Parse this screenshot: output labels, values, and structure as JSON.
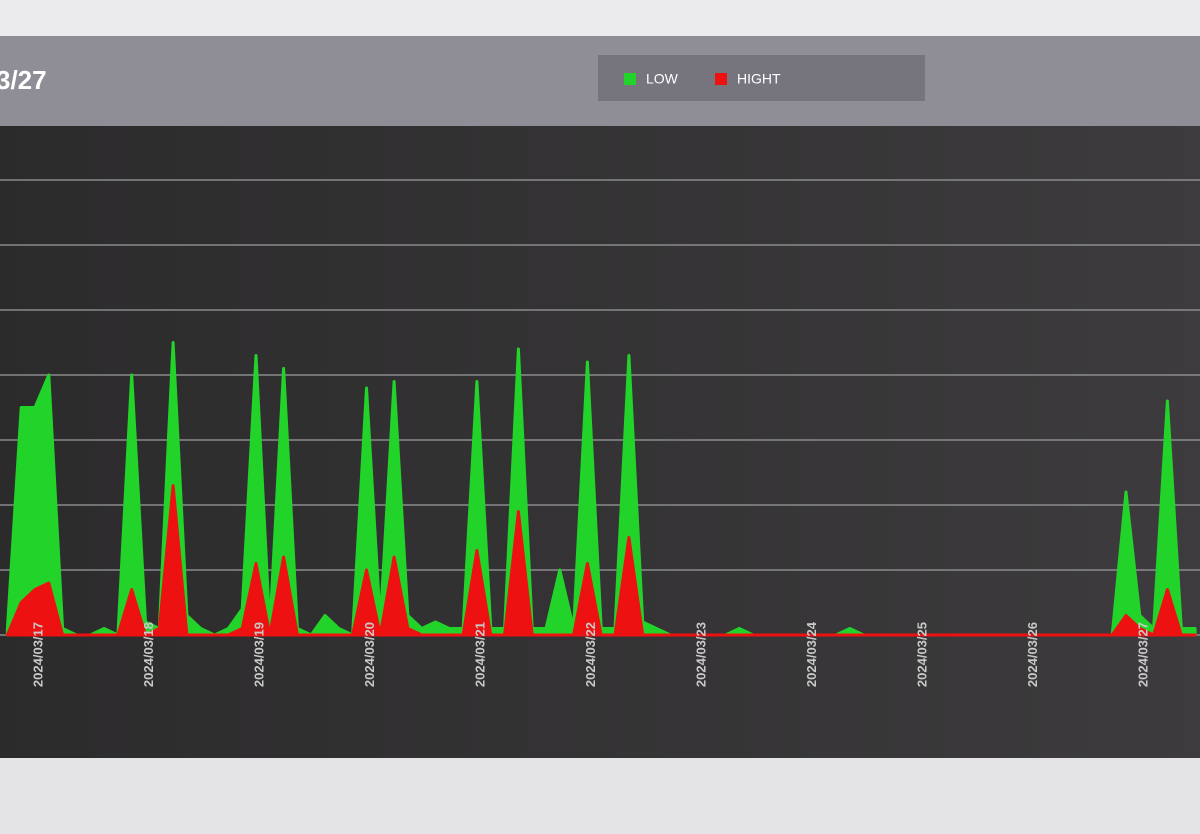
{
  "chart_data": {
    "type": "area",
    "title": "3/27",
    "categories": [
      null,
      null,
      "2024/03/17",
      null,
      null,
      null,
      null,
      null,
      null,
      null,
      "2024/03/18",
      null,
      null,
      null,
      null,
      null,
      null,
      null,
      "2024/03/19",
      null,
      null,
      null,
      null,
      null,
      null,
      null,
      "2024/03/20",
      null,
      null,
      null,
      null,
      null,
      null,
      null,
      "2024/03/21",
      null,
      null,
      null,
      null,
      null,
      null,
      null,
      "2024/03/22",
      null,
      null,
      null,
      null,
      null,
      null,
      null,
      "2024/03/23",
      null,
      null,
      null,
      null,
      null,
      null,
      null,
      "2024/03/24",
      null,
      null,
      null,
      null,
      null,
      null,
      null,
      "2024/03/25",
      null,
      null,
      null,
      null,
      null,
      null,
      null,
      "2024/03/26",
      null,
      null,
      null,
      null,
      null,
      null,
      null,
      "2024/03/27",
      null,
      null,
      null,
      null
    ],
    "series": [
      {
        "name": "LOW",
        "color": "#22d42a",
        "values": [
          0.1,
          3.5,
          3.5,
          4.0,
          0.1,
          0,
          0,
          0.1,
          0,
          4.0,
          0.2,
          0.1,
          4.5,
          0.3,
          0.1,
          0,
          0.1,
          0.4,
          4.3,
          0.1,
          4.1,
          0.1,
          0,
          0.3,
          0.1,
          0,
          3.8,
          0.2,
          3.9,
          0.3,
          0.1,
          0.2,
          0.1,
          0.1,
          3.9,
          0.1,
          0.1,
          4.4,
          0.1,
          0.1,
          1.0,
          0.1,
          4.2,
          0.1,
          0.1,
          4.3,
          0.2,
          0.1,
          0,
          0,
          0,
          0,
          0,
          0.1,
          0,
          0,
          0,
          0,
          0,
          0,
          0,
          0.1,
          0,
          0,
          0,
          0,
          0,
          0,
          0,
          0,
          0,
          0,
          0,
          0,
          0,
          0,
          0,
          0,
          0,
          0,
          0,
          2.2,
          0.3,
          0.1,
          3.6,
          0.1,
          0.1
        ]
      },
      {
        "name": "HIGHT",
        "color": "#ee1111",
        "values": [
          0,
          0.5,
          0.7,
          0.8,
          0,
          0,
          0,
          0,
          0,
          0.7,
          0,
          0.1,
          2.3,
          0,
          0,
          0,
          0,
          0.1,
          1.1,
          0,
          1.2,
          0,
          0,
          0,
          0,
          0,
          1.0,
          0,
          1.2,
          0.1,
          0,
          0,
          0,
          0,
          1.3,
          0,
          0,
          1.9,
          0,
          0,
          0,
          0,
          1.1,
          0,
          0,
          1.5,
          0,
          0,
          0,
          0,
          0,
          0,
          0,
          0,
          0,
          0,
          0,
          0,
          0,
          0,
          0,
          0,
          0,
          0,
          0,
          0,
          0,
          0,
          0,
          0,
          0,
          0,
          0,
          0,
          0,
          0,
          0,
          0,
          0,
          0,
          0,
          0.3,
          0.1,
          0,
          0.7,
          0,
          0
        ]
      }
    ],
    "ylim": [
      0,
      7.8
    ],
    "yticks": [
      0,
      1,
      2,
      3,
      4,
      5,
      6,
      7
    ],
    "grid": true
  }
}
